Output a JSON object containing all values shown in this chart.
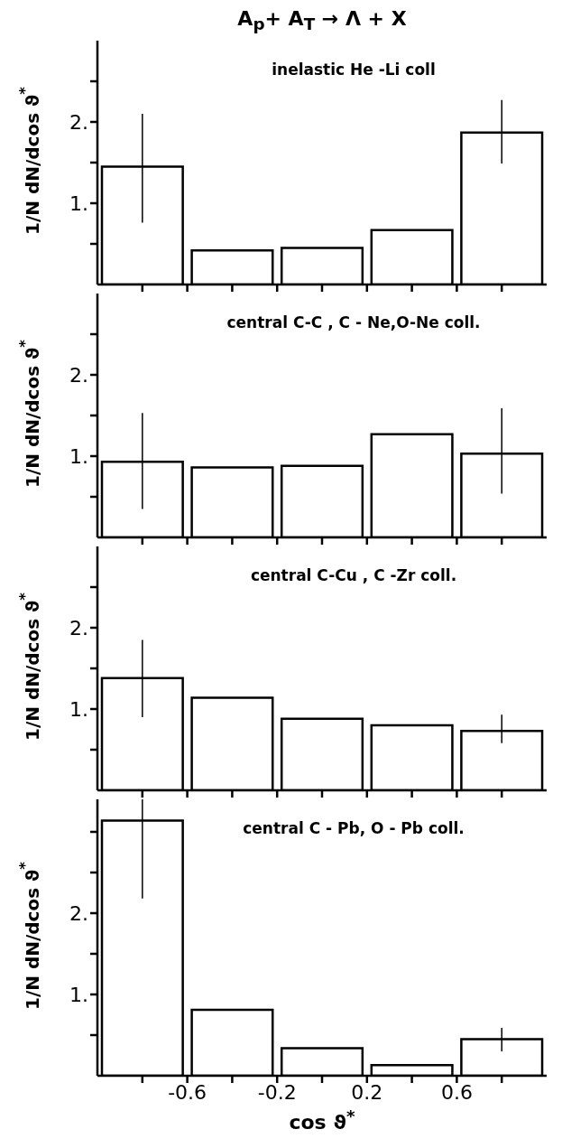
{
  "chart_data": [
    {
      "type": "histogram",
      "title": "A$_{p}$+ A$_{T}$ → Λ + X",
      "ylabel": "1/N dN/dcos ϑ$^{*}$",
      "annotations": [
        "inelastic  He -Li coll"
      ],
      "bins": [
        -1,
        -0.6,
        -0.2,
        0.2,
        0.6,
        1
      ],
      "values": [
        1.45,
        0.42,
        0.45,
        0.67,
        1.87
      ],
      "errors": [
        [
          0.76,
          2.1
        ],
        null,
        null,
        null,
        [
          1.49,
          2.27
        ]
      ],
      "color": "#000000",
      "xlim": [
        -1,
        1
      ],
      "xticks": [
        {
          "value": -0.8,
          "label": null
        },
        -0.6,
        {
          "value": -0.4,
          "label": null
        },
        -0.2,
        {
          "value": 0,
          "label": null
        },
        0.2,
        {
          "value": 0.4,
          "label": null
        },
        0.6,
        {
          "value": 0.8,
          "label": null
        }
      ],
      "ylim": [
        0,
        3
      ],
      "yticks": [
        {
          "value": 0.5,
          "label": null
        },
        {
          "value": 1,
          "label": "1."
        },
        {
          "value": 1.5,
          "label": null
        },
        {
          "value": 2,
          "label": "2."
        },
        {
          "value": 2.5,
          "label": null
        }
      ],
      "tick_labels": "y"
    },
    {
      "type": "histogram",
      "ylabel": "1/N dN/dcos ϑ$^{*}$",
      "annotations": [
        "central  C-C , C - Ne,O-Ne coll."
      ],
      "bins": [
        -1,
        -0.6,
        -0.2,
        0.2,
        0.6,
        1
      ],
      "values": [
        0.93,
        0.86,
        0.88,
        1.27,
        1.03
      ],
      "errors": [
        [
          0.35,
          1.53
        ],
        null,
        null,
        null,
        [
          0.54,
          1.59
        ]
      ],
      "color": "#000000",
      "xlim": [
        -1,
        1
      ],
      "xticks": [
        {
          "value": -0.8,
          "label": null
        },
        -0.6,
        {
          "value": -0.4,
          "label": null
        },
        -0.2,
        {
          "value": 0,
          "label": null
        },
        0.2,
        {
          "value": 0.4,
          "label": null
        },
        0.6,
        {
          "value": 0.8,
          "label": null
        }
      ],
      "ylim": [
        0,
        3
      ],
      "yticks": [
        {
          "value": 0.5,
          "label": null
        },
        {
          "value": 1,
          "label": "1."
        },
        {
          "value": 1.5,
          "label": null
        },
        {
          "value": 2,
          "label": "2."
        },
        {
          "value": 2.5,
          "label": null
        }
      ],
      "tick_labels": "y"
    },
    {
      "type": "histogram",
      "ylabel": "1/N dN/dcos ϑ$^{*}$",
      "annotations": [
        "central  C-Cu , C -Zr coll."
      ],
      "bins": [
        -1,
        -0.6,
        -0.2,
        0.2,
        0.6,
        1
      ],
      "values": [
        1.38,
        1.14,
        0.88,
        0.8,
        0.73
      ],
      "errors": [
        [
          0.9,
          1.85
        ],
        null,
        null,
        null,
        [
          0.58,
          0.93
        ]
      ],
      "color": "#000000",
      "xlim": [
        -1,
        1
      ],
      "xticks": [
        {
          "value": -0.8,
          "label": null
        },
        -0.6,
        {
          "value": -0.4,
          "label": null
        },
        -0.2,
        {
          "value": 0,
          "label": null
        },
        0.2,
        {
          "value": 0.4,
          "label": null
        },
        0.6,
        {
          "value": 0.8,
          "label": null
        }
      ],
      "ylim": [
        0,
        3
      ],
      "yticks": [
        {
          "value": 0.5,
          "label": null
        },
        {
          "value": 1,
          "label": "1."
        },
        {
          "value": 1.5,
          "label": null
        },
        {
          "value": 2,
          "label": "2."
        },
        {
          "value": 2.5,
          "label": null
        }
      ],
      "tick_labels": "y"
    },
    {
      "type": "histogram",
      "xlabel": "cos ϑ$^{*}$",
      "ylabel": "1/N dN/dcos ϑ$^{*}$",
      "annotations": [
        "central  C - Pb, O - Pb coll."
      ],
      "bins": [
        -1,
        -0.6,
        -0.2,
        0.2,
        0.6,
        1
      ],
      "values": [
        3.14,
        0.81,
        0.34,
        0.13,
        0.45
      ],
      "errors": [
        [
          2.18,
          3.4
        ],
        null,
        null,
        null,
        [
          0.3,
          0.59
        ]
      ],
      "color": "#000000",
      "xlim": [
        -1,
        1
      ],
      "xticks": [
        {
          "value": -0.8,
          "label": null
        },
        -0.6,
        {
          "value": -0.4,
          "label": null
        },
        -0.2,
        {
          "value": 0,
          "label": null
        },
        0.2,
        {
          "value": 0.4,
          "label": null
        },
        0.6,
        {
          "value": 0.8,
          "label": null
        }
      ],
      "ylim": [
        0,
        3.4
      ],
      "yticks": [
        {
          "value": 0.5,
          "label": null
        },
        {
          "value": 1,
          "label": "1."
        },
        {
          "value": 1.5,
          "label": null
        },
        {
          "value": 2,
          "label": "2."
        },
        {
          "value": 2.5,
          "label": null
        },
        {
          "value": 3,
          "label": null
        }
      ]
    }
  ]
}
